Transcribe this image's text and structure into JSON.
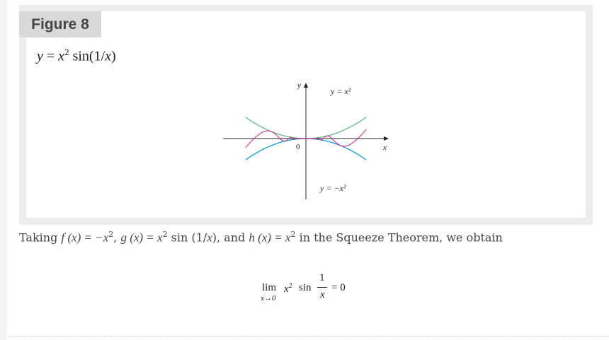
{
  "figure": {
    "label": "Figure 8",
    "caption": {
      "lhs": "y",
      "equals": " = ",
      "base": "x",
      "exp": "2",
      "rest": " sin(1/",
      "rest_var": "x",
      "close": ")"
    },
    "graph": {
      "y_axis_label": "y",
      "x_axis_label": "x",
      "origin_label": "0",
      "upper_curve_label": "y = x²",
      "lower_curve_label": "y = −x²",
      "colors": {
        "upper": "#6bbf8a",
        "lower": "#1aa3e0",
        "oscillating": "#d6247a",
        "axis": "#222222"
      }
    }
  },
  "body": {
    "text_1": "Taking ",
    "f": "f (x) = −x",
    "sep1": ", ",
    "g": "g (x) = x",
    "g_rest": " sin (1/",
    "g_var": "x",
    "g_close": "), and ",
    "h": "h (x) = x",
    "text_2": " in the Squeeze Theorem, we obtain",
    "exp": "2"
  },
  "formula": {
    "lim": "lim",
    "under": "x→0",
    "base": "x",
    "exp": "2",
    "sin": "sin",
    "numerator": "1",
    "denominator": "x",
    "result": "= 0"
  }
}
